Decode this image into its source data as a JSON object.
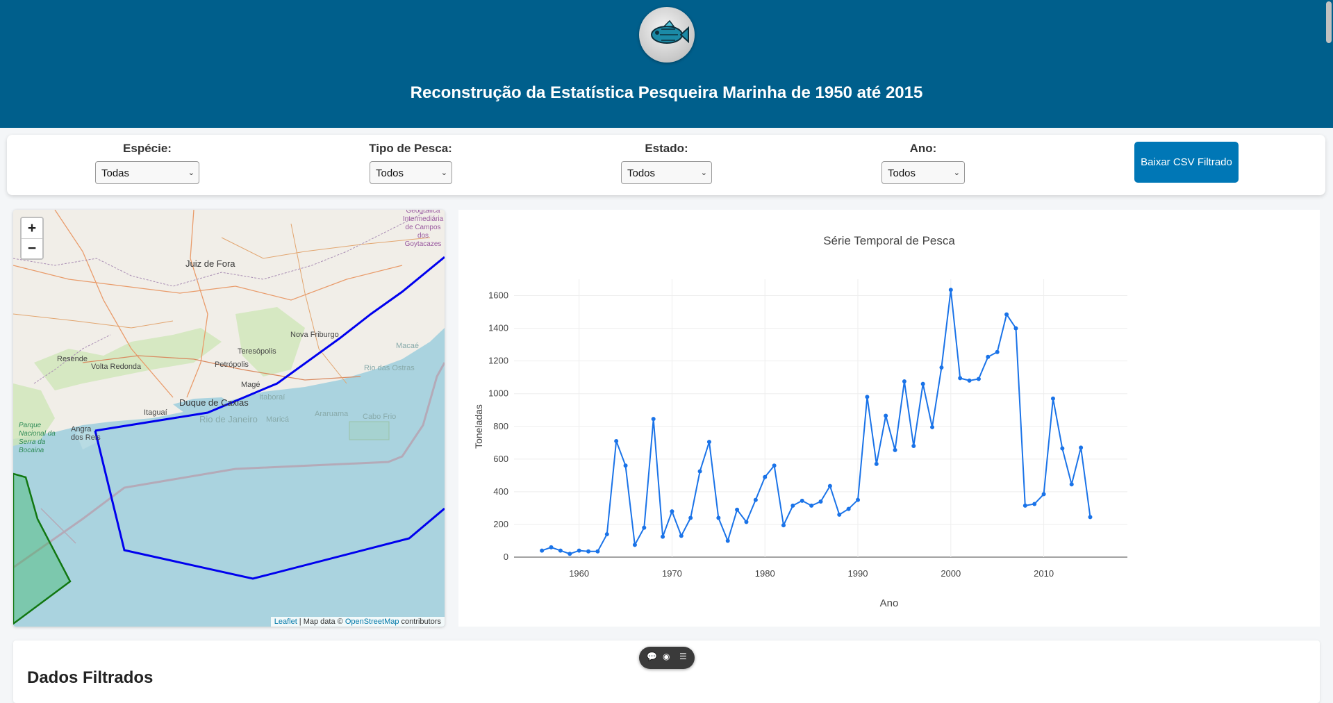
{
  "header": {
    "title": "Reconstrução da Estatística Pesqueira Marinha de 1950 até 2015"
  },
  "filters": {
    "especie": {
      "label": "Espécie:",
      "value": "Todas"
    },
    "tipo": {
      "label": "Tipo de Pesca:",
      "value": "Todos"
    },
    "estado": {
      "label": "Estado:",
      "value": "Todos"
    },
    "ano": {
      "label": "Ano:",
      "value": "Todos"
    },
    "download_label": "Baixar CSV Filtrado"
  },
  "map": {
    "zoom_in": "+",
    "zoom_out": "−",
    "attribution": {
      "leaflet": "Leaflet",
      "sep": " | Map data © ",
      "osm": "OpenStreetMap",
      "tail": " contributors"
    },
    "places": {
      "juiz": "Juiz de Fora",
      "novafriburgo": "Nova Friburgo",
      "teresopolis": "Teresópolis",
      "petropolis": "Petrópolis",
      "resende": "Resende",
      "voltaredonda": "Volta Redonda",
      "mage": "Magé",
      "duque": "Duque de Caxias",
      "itaborai": "Itaboraí",
      "itaguai": "Itaguaí",
      "rio": "Rio de Janeiro",
      "marica": "Maricá",
      "araruama": "Araruama",
      "cabofrio": "Cabo Frio",
      "macae": "Macaé",
      "riodasostras": "Rio das Ostras",
      "angra": "Angra dos Reis",
      "parque": "Parque Nacional da Serra da Bocaina",
      "geog": "Geográfica Intermediária de Campos dos Goytacazes"
    },
    "colors": {
      "zone_line": "#0000ee",
      "protected_area": "#1a7f1a",
      "sea": "#aad3df"
    }
  },
  "chart_data": {
    "type": "line",
    "title": "Série Temporal de Pesca",
    "xlabel": "Ano",
    "ylabel": "Toneladas",
    "xlim": [
      1953,
      2019
    ],
    "ylim": [
      0,
      1700
    ],
    "xticks": [
      1960,
      1970,
      1980,
      1990,
      2000,
      2010
    ],
    "yticks": [
      0,
      200,
      400,
      600,
      800,
      1000,
      1200,
      1400,
      1600
    ],
    "grid": true,
    "color": "#1a73e8",
    "x": [
      1956,
      1957,
      1958,
      1959,
      1960,
      1961,
      1962,
      1963,
      1964,
      1965,
      1966,
      1967,
      1968,
      1969,
      1970,
      1971,
      1972,
      1973,
      1974,
      1975,
      1976,
      1977,
      1978,
      1979,
      1980,
      1981,
      1982,
      1983,
      1984,
      1985,
      1986,
      1987,
      1988,
      1989,
      1990,
      1991,
      1992,
      1993,
      1994,
      1995,
      1996,
      1997,
      1998,
      1999,
      2000,
      2001,
      2002,
      2003,
      2004,
      2005,
      2006,
      2007,
      2008,
      2009,
      2010,
      2011,
      2012,
      2013,
      2014,
      2015
    ],
    "y": [
      40,
      60,
      40,
      20,
      40,
      35,
      35,
      140,
      710,
      560,
      75,
      180,
      845,
      125,
      280,
      130,
      240,
      525,
      705,
      240,
      100,
      290,
      215,
      350,
      490,
      560,
      195,
      315,
      345,
      315,
      340,
      435,
      260,
      295,
      350,
      980,
      570,
      865,
      655,
      1075,
      680,
      1060,
      795,
      1160,
      1635,
      1095,
      1080,
      1090,
      1225,
      1255,
      1485,
      1400,
      315,
      325,
      385,
      970,
      665,
      445,
      670,
      245
    ]
  },
  "table": {
    "title": "Dados Filtrados"
  }
}
